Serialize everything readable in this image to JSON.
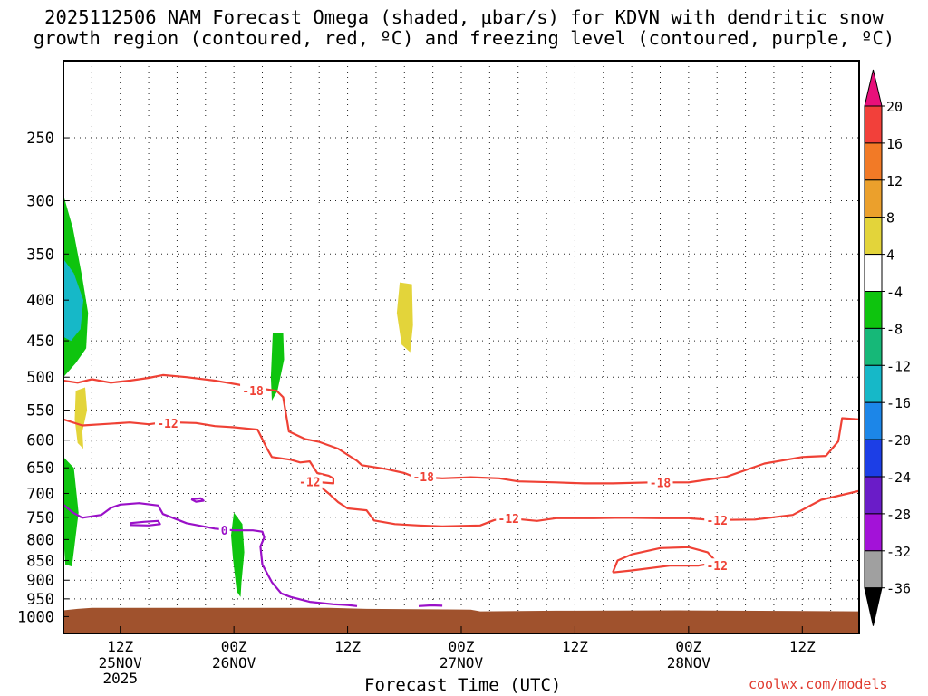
{
  "title": {
    "line1": "2025112506 NAM Forecast Omega (shaded, μbar/s) for KDVN with dendritic snow",
    "line2": "growth region (contoured, red, ºC) and freezing level (contoured, purple, ºC)"
  },
  "credit": "coolwx.com/models",
  "chart_data": {
    "type": "heatmap",
    "xlabel": "Forecast Time (UTC)",
    "ylabel": "",
    "x_ticks": [
      {
        "hour": 6,
        "label": "12Z",
        "date": "25NOV",
        "year": "2025"
      },
      {
        "hour": 18,
        "label": "00Z",
        "date": "26NOV",
        "year": ""
      },
      {
        "hour": 30,
        "label": "12Z",
        "date": "",
        "year": ""
      },
      {
        "hour": 42,
        "label": "00Z",
        "date": "27NOV",
        "year": ""
      },
      {
        "hour": 54,
        "label": "12Z",
        "date": "",
        "year": ""
      },
      {
        "hour": 66,
        "label": "00Z",
        "date": "28NOV",
        "year": ""
      },
      {
        "hour": 78,
        "label": "12Z",
        "date": "",
        "year": ""
      }
    ],
    "xlim_hours": [
      0,
      84
    ],
    "y_ticks": [
      250,
      300,
      350,
      400,
      450,
      500,
      550,
      600,
      650,
      700,
      750,
      800,
      850,
      900,
      950,
      1000
    ],
    "ylim_hpa": [
      1050,
      200
    ],
    "y_scale": "log-pressure",
    "grid": true,
    "colorbar": {
      "tick_labels": [
        "20",
        "16",
        "12",
        "8",
        "4",
        "-4",
        "-8",
        "-12",
        "-16",
        "-20",
        "-24",
        "-28",
        "-32",
        "-36"
      ],
      "bins": [
        {
          "color": "#e8107a"
        },
        {
          "color": "#f2403a"
        },
        {
          "color": "#f27a26"
        },
        {
          "color": "#eba02c"
        },
        {
          "color": "#e3d43a"
        },
        {
          "color": "#ffffff"
        },
        {
          "color": "#0ec40e"
        },
        {
          "color": "#16b878"
        },
        {
          "color": "#16b8c8"
        },
        {
          "color": "#1c86e8"
        },
        {
          "color": "#1c3ee6"
        },
        {
          "color": "#6a1cc8"
        },
        {
          "color": "#a312d8"
        },
        {
          "color": "#a0a0a0"
        },
        {
          "color": "#000000"
        }
      ]
    },
    "omega_regions": [
      {
        "color": "#0ec40e",
        "points": [
          [
            0,
            295
          ],
          [
            1,
            325
          ],
          [
            2,
            375
          ],
          [
            2.6,
            415
          ],
          [
            2.4,
            460
          ],
          [
            1.3,
            480
          ],
          [
            0,
            500
          ]
        ]
      },
      {
        "color": "#16b8c8",
        "points": [
          [
            0,
            355
          ],
          [
            1.1,
            370
          ],
          [
            2.1,
            400
          ],
          [
            1.8,
            435
          ],
          [
            0.8,
            450
          ],
          [
            0,
            445
          ]
        ]
      },
      {
        "color": "#e3d43a",
        "points": [
          [
            1.3,
            520
          ],
          [
            2.3,
            515
          ],
          [
            2.5,
            550
          ],
          [
            2.0,
            585
          ],
          [
            2.1,
            615
          ],
          [
            1.5,
            605
          ],
          [
            1.2,
            565
          ]
        ]
      },
      {
        "color": "#0ec40e",
        "points": [
          [
            0,
            630
          ],
          [
            1.1,
            650
          ],
          [
            1.6,
            740
          ],
          [
            1.2,
            810
          ],
          [
            0.9,
            865
          ],
          [
            0.2,
            860
          ],
          [
            0,
            790
          ]
        ]
      },
      {
        "color": "#0ec40e",
        "points": [
          [
            22.1,
            440
          ],
          [
            23.2,
            440
          ],
          [
            23.3,
            475
          ],
          [
            22.6,
            520
          ],
          [
            22.0,
            535
          ],
          [
            21.9,
            500
          ]
        ]
      },
      {
        "color": "#e3d43a",
        "points": [
          [
            35.5,
            380
          ],
          [
            36.8,
            382
          ],
          [
            36.9,
            430
          ],
          [
            36.6,
            465
          ],
          [
            35.7,
            455
          ],
          [
            35.2,
            415
          ]
        ]
      },
      {
        "color": "#0ec40e",
        "points": [
          [
            18.0,
            740
          ],
          [
            18.9,
            765
          ],
          [
            19.1,
            830
          ],
          [
            18.8,
            905
          ],
          [
            18.7,
            945
          ],
          [
            18.3,
            930
          ],
          [
            17.9,
            845
          ],
          [
            17.7,
            790
          ]
        ]
      }
    ],
    "series": [
      {
        "name": "-18",
        "color": "#ef4135",
        "points": [
          [
            0,
            505
          ],
          [
            1.5,
            508
          ],
          [
            3,
            503
          ],
          [
            5,
            508
          ],
          [
            7,
            505
          ],
          [
            9,
            501
          ],
          [
            10.5,
            497
          ],
          [
            13,
            500
          ],
          [
            16,
            505
          ],
          [
            18.5,
            511
          ],
          [
            20,
            515
          ],
          [
            21.5,
            518
          ],
          [
            22.5,
            520
          ],
          [
            23.2,
            530
          ],
          [
            23.8,
            585
          ],
          [
            25.5,
            598
          ],
          [
            27,
            603
          ],
          [
            29,
            615
          ],
          [
            31,
            637
          ],
          [
            31.5,
            645
          ],
          [
            34,
            652
          ],
          [
            36,
            660
          ],
          [
            37,
            667
          ],
          [
            40,
            670
          ],
          [
            43,
            668
          ],
          [
            46,
            670
          ],
          [
            48,
            676
          ],
          [
            52,
            678
          ],
          [
            55,
            680
          ],
          [
            58,
            680
          ],
          [
            62,
            678
          ],
          [
            66,
            678
          ],
          [
            70,
            667
          ],
          [
            74,
            642
          ],
          [
            78,
            630
          ],
          [
            80.5,
            628
          ],
          [
            81.8,
            602
          ],
          [
            82.2,
            563
          ],
          [
            84,
            565
          ]
        ],
        "labels": [
          {
            "text": "-18",
            "x": 20,
            "y": 520
          },
          {
            "text": "-18",
            "x": 38,
            "y": 667
          },
          {
            "text": "-18",
            "x": 63,
            "y": 678
          }
        ]
      },
      {
        "name": "-12",
        "color": "#ef4135",
        "points": [
          [
            0,
            565
          ],
          [
            2,
            575
          ],
          [
            4,
            573
          ],
          [
            7,
            570
          ],
          [
            9,
            573
          ],
          [
            11,
            569
          ],
          [
            12,
            570
          ],
          [
            14,
            571
          ],
          [
            16,
            576
          ],
          [
            18,
            578
          ],
          [
            20.5,
            582
          ],
          [
            21.5,
            615
          ],
          [
            22,
            630
          ],
          [
            24,
            635
          ],
          [
            25,
            640
          ],
          [
            26,
            638
          ],
          [
            26.8,
            660
          ],
          [
            28,
            665
          ],
          [
            28.5,
            670
          ],
          [
            28.5,
            680
          ],
          [
            26.5,
            677
          ],
          [
            28,
            700
          ],
          [
            29,
            718
          ],
          [
            30,
            731
          ],
          [
            32,
            735
          ],
          [
            32.8,
            757
          ],
          [
            35,
            765
          ],
          [
            37.5,
            768
          ],
          [
            40,
            770
          ],
          [
            44,
            768
          ],
          [
            45.5,
            756
          ],
          [
            47,
            752
          ],
          [
            50,
            758
          ],
          [
            52,
            752
          ],
          [
            56,
            752
          ],
          [
            59,
            751
          ],
          [
            63,
            752
          ],
          [
            66,
            752
          ],
          [
            68.5,
            756
          ],
          [
            73,
            755
          ],
          [
            77,
            745
          ],
          [
            80,
            713
          ],
          [
            84,
            695
          ]
        ],
        "labels": [
          {
            "text": "-12",
            "x": 11,
            "y": 571
          },
          {
            "text": "-12",
            "x": 26,
            "y": 677
          },
          {
            "text": "-12",
            "x": 47,
            "y": 752
          },
          {
            "text": "-12",
            "x": 69,
            "y": 756
          }
        ]
      },
      {
        "name": "-12 closed",
        "color": "#ef4135",
        "points": [
          [
            58,
            880
          ],
          [
            58.5,
            850
          ],
          [
            60,
            835
          ],
          [
            63,
            820
          ],
          [
            66,
            818
          ],
          [
            68,
            830
          ],
          [
            69,
            855
          ],
          [
            67,
            863
          ],
          [
            64,
            863
          ],
          [
            60,
            875
          ],
          [
            58,
            880
          ]
        ],
        "labels": [
          {
            "text": "-12",
            "x": 69,
            "y": 863
          }
        ]
      },
      {
        "name": "0",
        "color": "#9a10c8",
        "points": [
          [
            0,
            723
          ],
          [
            1,
            740
          ],
          [
            2,
            751
          ],
          [
            4,
            745
          ],
          [
            5,
            730
          ],
          [
            6,
            723
          ],
          [
            8,
            720
          ],
          [
            10,
            725
          ],
          [
            10.5,
            743
          ],
          [
            13,
            763
          ],
          [
            16,
            775
          ],
          [
            18,
            779
          ],
          [
            20,
            779
          ],
          [
            21,
            782
          ],
          [
            21.2,
            795
          ],
          [
            20.8,
            816
          ],
          [
            21,
            860
          ],
          [
            22,
            905
          ],
          [
            23,
            935
          ],
          [
            24,
            945
          ],
          [
            26,
            958
          ],
          [
            28.5,
            965
          ],
          [
            30,
            967
          ],
          [
            31,
            970
          ]
        ],
        "labels": [
          {
            "text": "0",
            "x": 17,
            "y": 779
          }
        ]
      },
      {
        "name": "0 small",
        "color": "#9a10c8",
        "points": [
          [
            7,
            763
          ],
          [
            8.5,
            760
          ],
          [
            10,
            758
          ],
          [
            10.2,
            765
          ],
          [
            9,
            768
          ],
          [
            7,
            767
          ]
        ],
        "labels": []
      },
      {
        "name": "0 tiny",
        "color": "#9a10c8",
        "points": [
          [
            13.5,
            712
          ],
          [
            14.5,
            710
          ],
          [
            14.8,
            715
          ],
          [
            14,
            717
          ],
          [
            13.5,
            712
          ]
        ],
        "labels": []
      },
      {
        "name": "0 surface",
        "color": "#9a10c8",
        "points": [
          [
            37.5,
            970
          ],
          [
            38.8,
            968
          ],
          [
            40,
            969
          ]
        ],
        "labels": []
      }
    ],
    "terrain": {
      "color": "#a0522d",
      "points": [
        [
          0,
          982
        ],
        [
          1.5,
          978
        ],
        [
          3,
          975
        ],
        [
          28,
          975
        ],
        [
          32,
          978
        ],
        [
          43,
          980
        ],
        [
          44,
          985
        ],
        [
          52,
          983
        ],
        [
          65,
          982
        ],
        [
          84,
          985
        ]
      ]
    }
  }
}
